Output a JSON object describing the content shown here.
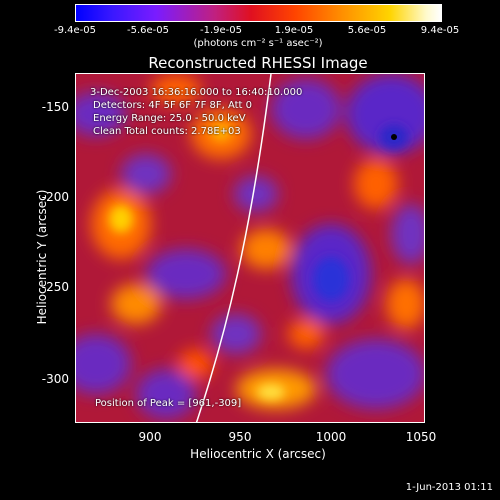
{
  "colorbar": {
    "ticks": [
      "-9.4e-05",
      "-5.6e-05",
      "-1.9e-05",
      "1.9e-05",
      "5.6e-05",
      "9.4e-05"
    ],
    "units": "(photons cm⁻² s⁻¹ asec⁻²)"
  },
  "plot": {
    "title": "Reconstructed RHESSI Image",
    "info_lines": [
      "3-Dec-2003 16:36:16.000 to 16:40:10.000",
      "Detectors: 4F 5F 6F 7F 8F, Att 0",
      "Energy Range: 25.0 - 50.0 keV",
      "Clean    Total counts: 2.78E+03"
    ],
    "peak_label": "Position of Peak = [961,-309]",
    "x_axis": {
      "label": "Heliocentric X (arcsec)",
      "ticks": [
        "900",
        "950",
        "1000",
        "1050"
      ]
    },
    "y_axis": {
      "label": "Heliocentric Y (arcsec)",
      "ticks": [
        "-150",
        "-200",
        "-250",
        "-300"
      ]
    }
  },
  "footer": {
    "timestamp": "1-Jun-2013 01:11"
  }
}
